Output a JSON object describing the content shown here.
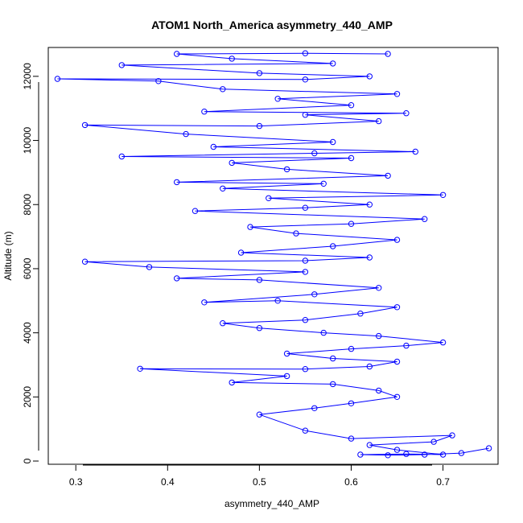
{
  "chart_data": {
    "type": "scatter",
    "title": "ATOM1 North_America asymmetry_440_AMP",
    "xlabel": "asymmetry_440_AMP",
    "ylabel": "Altitude (m)",
    "xlim": [
      0.27,
      0.76
    ],
    "ylim": [
      -100,
      12900
    ],
    "x_ticks": [
      0.3,
      0.4,
      0.5,
      0.6,
      0.7
    ],
    "x_tick_labels": [
      "0.3",
      "0.4",
      "0.5",
      "0.6",
      "0.7"
    ],
    "y_ticks": [
      0,
      2000,
      4000,
      6000,
      8000,
      10000,
      12000
    ],
    "y_tick_labels": [
      "0",
      "2000",
      "4000",
      "6000",
      "8000",
      "10000",
      "12000"
    ],
    "series": [
      {
        "name": "asymmetry_440_AMP",
        "color": "#0000ff",
        "marker": "open-circle",
        "connected": true,
        "points": [
          {
            "x": 0.75,
            "y": 400
          },
          {
            "x": 0.72,
            "y": 250
          },
          {
            "x": 0.68,
            "y": 200
          },
          {
            "x": 0.64,
            "y": 180
          },
          {
            "x": 0.61,
            "y": 200
          },
          {
            "x": 0.66,
            "y": 220
          },
          {
            "x": 0.7,
            "y": 200
          },
          {
            "x": 0.65,
            "y": 350
          },
          {
            "x": 0.62,
            "y": 500
          },
          {
            "x": 0.69,
            "y": 600
          },
          {
            "x": 0.71,
            "y": 800
          },
          {
            "x": 0.6,
            "y": 700
          },
          {
            "x": 0.55,
            "y": 950
          },
          {
            "x": 0.5,
            "y": 1450
          },
          {
            "x": 0.56,
            "y": 1650
          },
          {
            "x": 0.6,
            "y": 1800
          },
          {
            "x": 0.65,
            "y": 2000
          },
          {
            "x": 0.63,
            "y": 2200
          },
          {
            "x": 0.58,
            "y": 2400
          },
          {
            "x": 0.47,
            "y": 2450
          },
          {
            "x": 0.53,
            "y": 2650
          },
          {
            "x": 0.37,
            "y": 2880
          },
          {
            "x": 0.55,
            "y": 2870
          },
          {
            "x": 0.62,
            "y": 2950
          },
          {
            "x": 0.65,
            "y": 3100
          },
          {
            "x": 0.58,
            "y": 3200
          },
          {
            "x": 0.53,
            "y": 3350
          },
          {
            "x": 0.6,
            "y": 3500
          },
          {
            "x": 0.66,
            "y": 3600
          },
          {
            "x": 0.7,
            "y": 3700
          },
          {
            "x": 0.63,
            "y": 3900
          },
          {
            "x": 0.57,
            "y": 4000
          },
          {
            "x": 0.5,
            "y": 4150
          },
          {
            "x": 0.46,
            "y": 4300
          },
          {
            "x": 0.55,
            "y": 4400
          },
          {
            "x": 0.61,
            "y": 4600
          },
          {
            "x": 0.65,
            "y": 4800
          },
          {
            "x": 0.52,
            "y": 5000
          },
          {
            "x": 0.44,
            "y": 4950
          },
          {
            "x": 0.56,
            "y": 5200
          },
          {
            "x": 0.63,
            "y": 5400
          },
          {
            "x": 0.5,
            "y": 5650
          },
          {
            "x": 0.41,
            "y": 5700
          },
          {
            "x": 0.55,
            "y": 5900
          },
          {
            "x": 0.38,
            "y": 6050
          },
          {
            "x": 0.31,
            "y": 6220
          },
          {
            "x": 0.55,
            "y": 6250
          },
          {
            "x": 0.62,
            "y": 6350
          },
          {
            "x": 0.48,
            "y": 6500
          },
          {
            "x": 0.58,
            "y": 6700
          },
          {
            "x": 0.65,
            "y": 6900
          },
          {
            "x": 0.54,
            "y": 7100
          },
          {
            "x": 0.49,
            "y": 7300
          },
          {
            "x": 0.6,
            "y": 7400
          },
          {
            "x": 0.68,
            "y": 7550
          },
          {
            "x": 0.43,
            "y": 7800
          },
          {
            "x": 0.55,
            "y": 7900
          },
          {
            "x": 0.62,
            "y": 8000
          },
          {
            "x": 0.51,
            "y": 8200
          },
          {
            "x": 0.7,
            "y": 8300
          },
          {
            "x": 0.46,
            "y": 8500
          },
          {
            "x": 0.57,
            "y": 8650
          },
          {
            "x": 0.41,
            "y": 8700
          },
          {
            "x": 0.64,
            "y": 8900
          },
          {
            "x": 0.53,
            "y": 9100
          },
          {
            "x": 0.47,
            "y": 9300
          },
          {
            "x": 0.6,
            "y": 9450
          },
          {
            "x": 0.35,
            "y": 9500
          },
          {
            "x": 0.56,
            "y": 9600
          },
          {
            "x": 0.67,
            "y": 9650
          },
          {
            "x": 0.45,
            "y": 9800
          },
          {
            "x": 0.58,
            "y": 9950
          },
          {
            "x": 0.42,
            "y": 10200
          },
          {
            "x": 0.31,
            "y": 10480
          },
          {
            "x": 0.5,
            "y": 10450
          },
          {
            "x": 0.63,
            "y": 10600
          },
          {
            "x": 0.55,
            "y": 10800
          },
          {
            "x": 0.66,
            "y": 10850
          },
          {
            "x": 0.44,
            "y": 10900
          },
          {
            "x": 0.6,
            "y": 11100
          },
          {
            "x": 0.52,
            "y": 11300
          },
          {
            "x": 0.65,
            "y": 11450
          },
          {
            "x": 0.46,
            "y": 11600
          },
          {
            "x": 0.39,
            "y": 11850
          },
          {
            "x": 0.28,
            "y": 11920
          },
          {
            "x": 0.55,
            "y": 11900
          },
          {
            "x": 0.62,
            "y": 12000
          },
          {
            "x": 0.5,
            "y": 12100
          },
          {
            "x": 0.35,
            "y": 12350
          },
          {
            "x": 0.58,
            "y": 12400
          },
          {
            "x": 0.47,
            "y": 12550
          },
          {
            "x": 0.41,
            "y": 12700
          },
          {
            "x": 0.55,
            "y": 12720
          },
          {
            "x": 0.64,
            "y": 12700
          }
        ]
      }
    ]
  }
}
